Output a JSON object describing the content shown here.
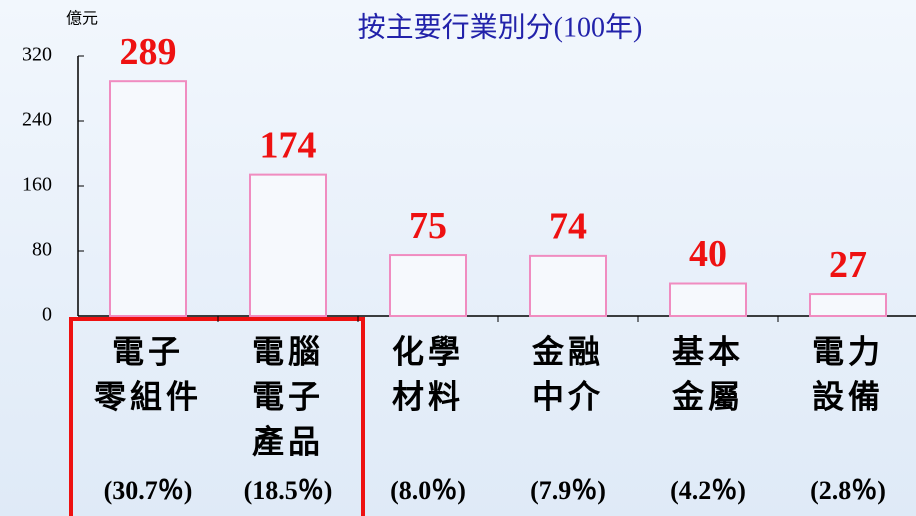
{
  "chart_data": {
    "type": "bar",
    "title": "按主要行業別分(100年)",
    "y_label": "億元",
    "categories": [
      [
        "電子",
        "零組件"
      ],
      [
        "電腦",
        "電子",
        "產品"
      ],
      [
        "化學",
        "材料"
      ],
      [
        "金融",
        "中介"
      ],
      [
        "基本",
        "金屬"
      ],
      [
        "電力",
        "設備"
      ]
    ],
    "share_labels": [
      "(30.7％)",
      "(18.5％)",
      "(8.0％)",
      "(7.9％)",
      "(4.2％)",
      "(2.8％)"
    ],
    "values": [
      289,
      174,
      75,
      74,
      40,
      27
    ],
    "color": "#f08cc0",
    "value_label_color": "#ee1111",
    "ylim": [
      0,
      320
    ],
    "yticks": [
      0,
      80,
      160,
      240,
      320
    ],
    "grid": false
  }
}
